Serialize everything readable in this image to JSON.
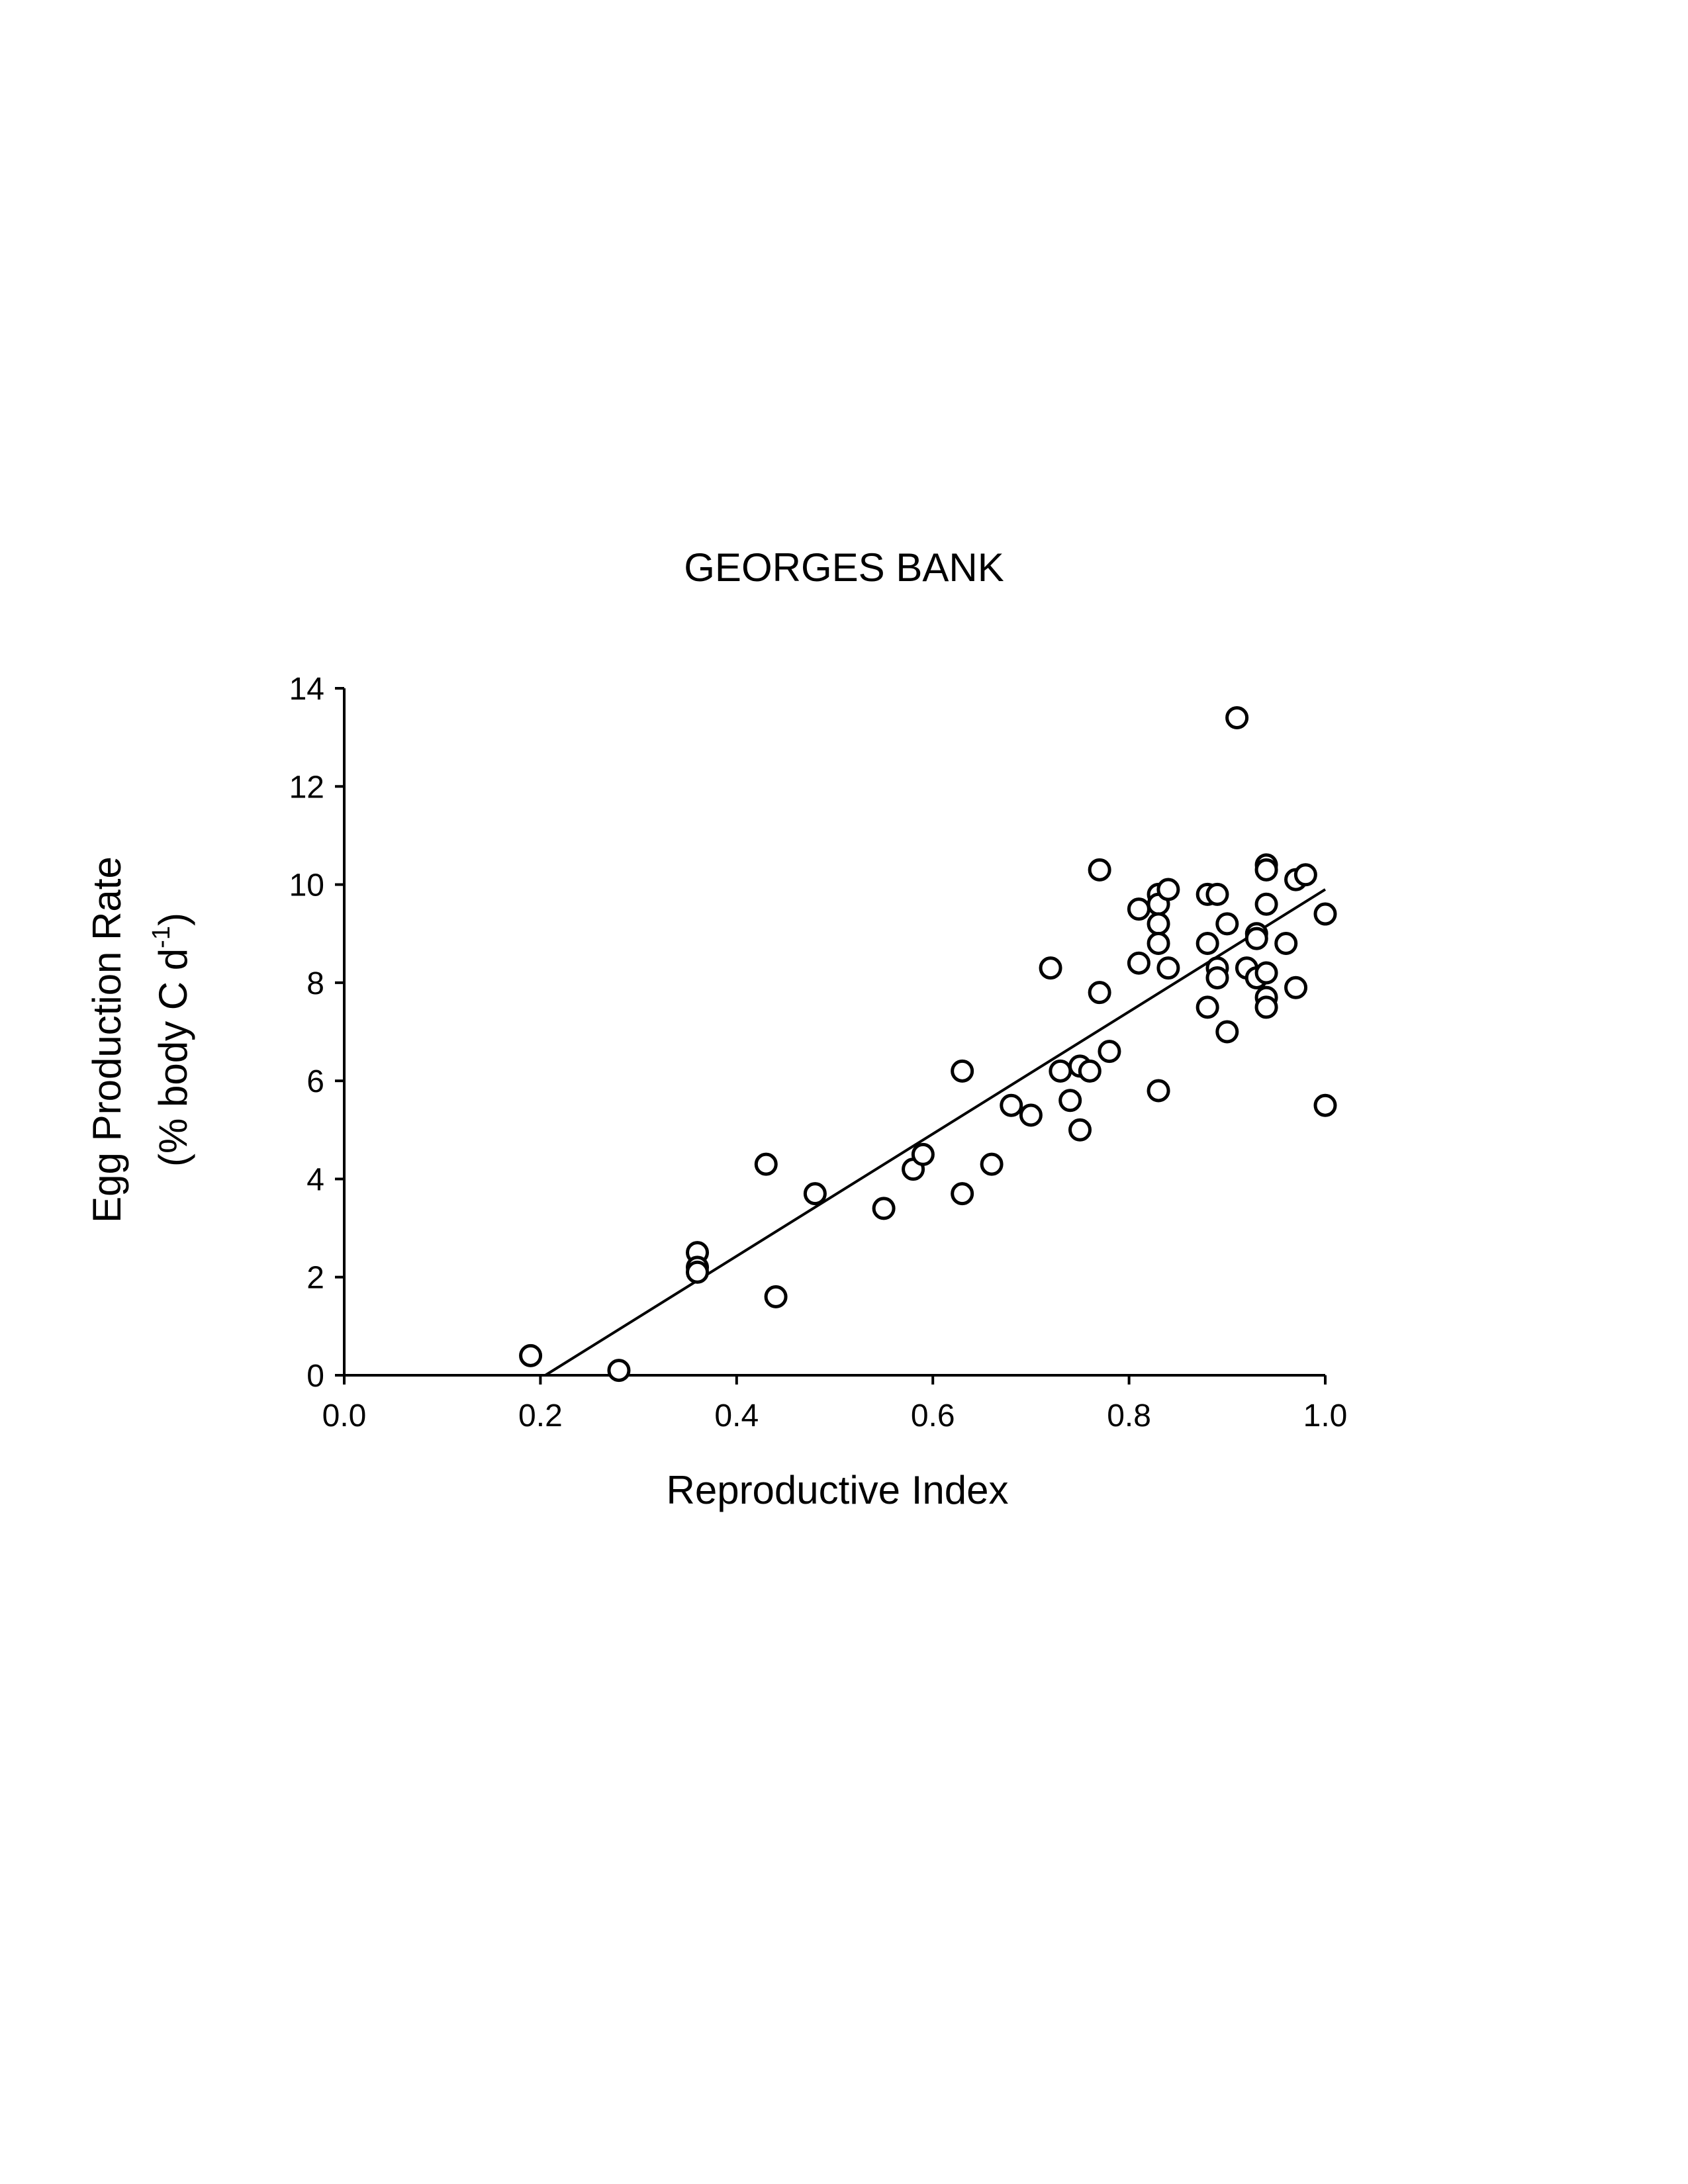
{
  "chart_data": {
    "type": "scatter",
    "title": "GEORGES BANK",
    "xlabel": "Reproductive Index",
    "ylabel_line1": "Egg Production Rate",
    "ylabel_line2_prefix": "(% body C d",
    "ylabel_line2_sup": "-1",
    "ylabel_line2_suffix": ")",
    "xlim": [
      0.0,
      1.0
    ],
    "ylim": [
      0,
      14
    ],
    "xticks": [
      0.0,
      0.2,
      0.4,
      0.6,
      0.8,
      1.0
    ],
    "xtick_labels": [
      "0.0",
      "0.2",
      "0.4",
      "0.6",
      "0.8",
      "1.0"
    ],
    "yticks": [
      0,
      2,
      4,
      6,
      8,
      10,
      12,
      14
    ],
    "ytick_labels": [
      "0",
      "2",
      "4",
      "6",
      "8",
      "10",
      "12",
      "14"
    ],
    "grid": false,
    "legend": "none",
    "marker": "open-circle",
    "points": [
      [
        0.19,
        0.4
      ],
      [
        0.28,
        0.1
      ],
      [
        0.36,
        2.5
      ],
      [
        0.36,
        2.2
      ],
      [
        0.36,
        2.1
      ],
      [
        0.43,
        4.3
      ],
      [
        0.44,
        1.6
      ],
      [
        0.48,
        3.7
      ],
      [
        0.55,
        3.4
      ],
      [
        0.58,
        4.2
      ],
      [
        0.59,
        4.5
      ],
      [
        0.63,
        6.2
      ],
      [
        0.63,
        3.7
      ],
      [
        0.66,
        4.3
      ],
      [
        0.68,
        5.5
      ],
      [
        0.7,
        5.3
      ],
      [
        0.72,
        8.3
      ],
      [
        0.73,
        6.2
      ],
      [
        0.74,
        5.6
      ],
      [
        0.75,
        6.3
      ],
      [
        0.75,
        5.0
      ],
      [
        0.76,
        6.2
      ],
      [
        0.77,
        10.3
      ],
      [
        0.77,
        7.8
      ],
      [
        0.78,
        6.6
      ],
      [
        0.81,
        9.5
      ],
      [
        0.81,
        8.4
      ],
      [
        0.83,
        9.8
      ],
      [
        0.83,
        9.6
      ],
      [
        0.83,
        9.2
      ],
      [
        0.83,
        8.8
      ],
      [
        0.83,
        5.8
      ],
      [
        0.84,
        9.9
      ],
      [
        0.84,
        8.3
      ],
      [
        0.88,
        9.8
      ],
      [
        0.88,
        8.8
      ],
      [
        0.88,
        7.5
      ],
      [
        0.89,
        9.8
      ],
      [
        0.89,
        8.3
      ],
      [
        0.89,
        8.1
      ],
      [
        0.9,
        9.2
      ],
      [
        0.9,
        7.0
      ],
      [
        0.91,
        13.4
      ],
      [
        0.92,
        8.3
      ],
      [
        0.93,
        9.0
      ],
      [
        0.93,
        8.9
      ],
      [
        0.93,
        8.1
      ],
      [
        0.94,
        10.4
      ],
      [
        0.94,
        10.3
      ],
      [
        0.94,
        9.6
      ],
      [
        0.94,
        8.2
      ],
      [
        0.94,
        7.7
      ],
      [
        0.94,
        7.5
      ],
      [
        0.96,
        8.8
      ],
      [
        0.97,
        10.1
      ],
      [
        0.97,
        7.9
      ],
      [
        0.98,
        10.2
      ],
      [
        1.0,
        9.4
      ],
      [
        1.0,
        5.5
      ]
    ],
    "fit_line": {
      "x": [
        0.205,
        1.0
      ],
      "y": [
        0.0,
        9.9
      ]
    }
  }
}
